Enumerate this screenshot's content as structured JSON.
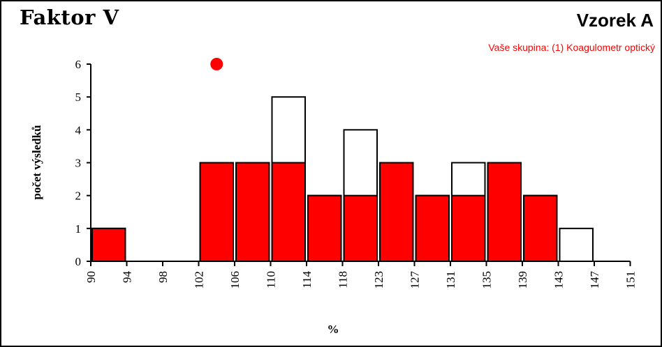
{
  "header": {
    "title": "Faktor V",
    "sample": "Vzorek A",
    "group_note": "Vaše skupina: (1) Koagulometr optický"
  },
  "colors": {
    "highlight": "#ff0000",
    "outline": "#000000",
    "total_fill": "#ffffff"
  },
  "chart_data": {
    "type": "bar",
    "title": "Faktor V",
    "subtitle": "Vaše skupina: (1) Koagulometr optický",
    "xlabel": "%",
    "ylabel": "počet výsledků",
    "x_ticks": [
      "90",
      "94",
      "98",
      "102",
      "106",
      "110",
      "114",
      "118",
      "123",
      "127",
      "131",
      "135",
      "139",
      "143",
      "147",
      "151"
    ],
    "y_ticks": [
      "0",
      "1",
      "2",
      "3",
      "4",
      "5",
      "6"
    ],
    "ylim": [
      0,
      6
    ],
    "bins": [
      {
        "from": "90",
        "to": "94"
      },
      {
        "from": "94",
        "to": "98"
      },
      {
        "from": "98",
        "to": "102"
      },
      {
        "from": "102",
        "to": "106"
      },
      {
        "from": "106",
        "to": "110"
      },
      {
        "from": "110",
        "to": "114"
      },
      {
        "from": "114",
        "to": "118"
      },
      {
        "from": "118",
        "to": "123"
      },
      {
        "from": "123",
        "to": "127"
      },
      {
        "from": "127",
        "to": "131"
      },
      {
        "from": "131",
        "to": "135"
      },
      {
        "from": "135",
        "to": "139"
      },
      {
        "from": "139",
        "to": "143"
      },
      {
        "from": "143",
        "to": "147"
      },
      {
        "from": "147",
        "to": "151"
      }
    ],
    "series": [
      {
        "values": [
          1,
          0,
          0,
          3,
          3,
          5,
          2,
          4,
          3,
          2,
          3,
          3,
          2,
          1,
          0
        ],
        "color": "#ffffff"
      },
      {
        "values": [
          1,
          0,
          0,
          3,
          3,
          3,
          2,
          2,
          3,
          2,
          2,
          3,
          2,
          0,
          0
        ],
        "color": "#ff0000"
      }
    ],
    "marker": {
      "x": 104,
      "y": 6,
      "color": "#ff0000"
    },
    "grid": false,
    "legend": "none"
  }
}
